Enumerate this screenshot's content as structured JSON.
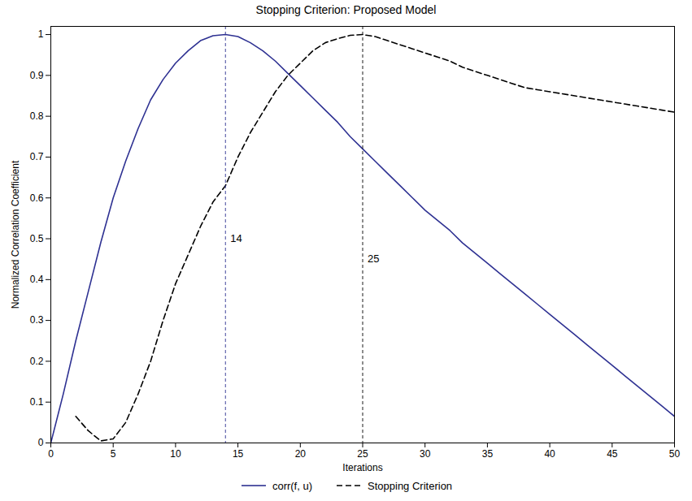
{
  "chart_data": {
    "type": "line",
    "title": "Stopping Criterion: Proposed Model",
    "x_label": "Iterations",
    "y_label": "Normalized Correlation Coefficient",
    "x": [
      0,
      1,
      2,
      3,
      4,
      5,
      6,
      7,
      8,
      9,
      10,
      11,
      12,
      13,
      14,
      15,
      16,
      17,
      18,
      19,
      20,
      21,
      22,
      23,
      24,
      25,
      26,
      27,
      28,
      29,
      30,
      31,
      32,
      33,
      34,
      35,
      36,
      37,
      38,
      39,
      40,
      41,
      42,
      43,
      44,
      45,
      46,
      47,
      48,
      49,
      50
    ],
    "series": [
      {
        "name": "corr(f, u)",
        "color": "#2e3192",
        "line_style": "solid",
        "values": [
          0,
          0.12,
          0.25,
          0.37,
          0.49,
          0.6,
          0.69,
          0.77,
          0.84,
          0.89,
          0.93,
          0.96,
          0.985,
          0.997,
          1.0,
          0.995,
          0.98,
          0.96,
          0.935,
          0.905,
          0.875,
          0.845,
          0.815,
          0.785,
          0.75,
          0.72,
          0.69,
          0.66,
          0.63,
          0.6,
          0.57,
          0.545,
          0.52,
          0.49,
          0.465,
          0.44,
          0.415,
          0.39,
          0.365,
          0.34,
          0.315,
          0.29,
          0.265,
          0.24,
          0.215,
          0.19,
          0.165,
          0.14,
          0.115,
          0.09,
          0.065
        ]
      },
      {
        "name": "Stopping Criterion",
        "color": "#000000",
        "line_style": "dashed",
        "values": [
          null,
          null,
          0.065,
          0.03,
          0.005,
          0.01,
          0.05,
          0.12,
          0.2,
          0.3,
          0.39,
          0.46,
          0.53,
          0.59,
          0.63,
          0.7,
          0.76,
          0.81,
          0.86,
          0.9,
          0.93,
          0.96,
          0.98,
          0.99,
          0.998,
          1.0,
          0.995,
          0.985,
          0.975,
          0.965,
          0.955,
          0.945,
          0.935,
          0.92,
          0.91,
          0.9,
          0.89,
          0.88,
          0.87,
          0.865,
          0.86,
          0.855,
          0.85,
          0.845,
          0.84,
          0.835,
          0.83,
          0.825,
          0.82,
          0.815,
          0.81
        ]
      }
    ],
    "annotations": [
      {
        "x": 14,
        "y": 0.5,
        "text": "14",
        "color": "#2e3192"
      },
      {
        "x": 25,
        "y": 0.45,
        "text": "25",
        "color": "#000000"
      }
    ],
    "xlim": [
      0,
      50
    ],
    "xticks": [
      0,
      5,
      10,
      15,
      20,
      25,
      30,
      35,
      40,
      45,
      50
    ],
    "ylim": [
      0,
      1.02
    ],
    "yticks": [
      0,
      0.1,
      0.2,
      0.3,
      0.4,
      0.5,
      0.6,
      0.7,
      0.8,
      0.9,
      1
    ],
    "grid": false,
    "legend": "bottom"
  }
}
